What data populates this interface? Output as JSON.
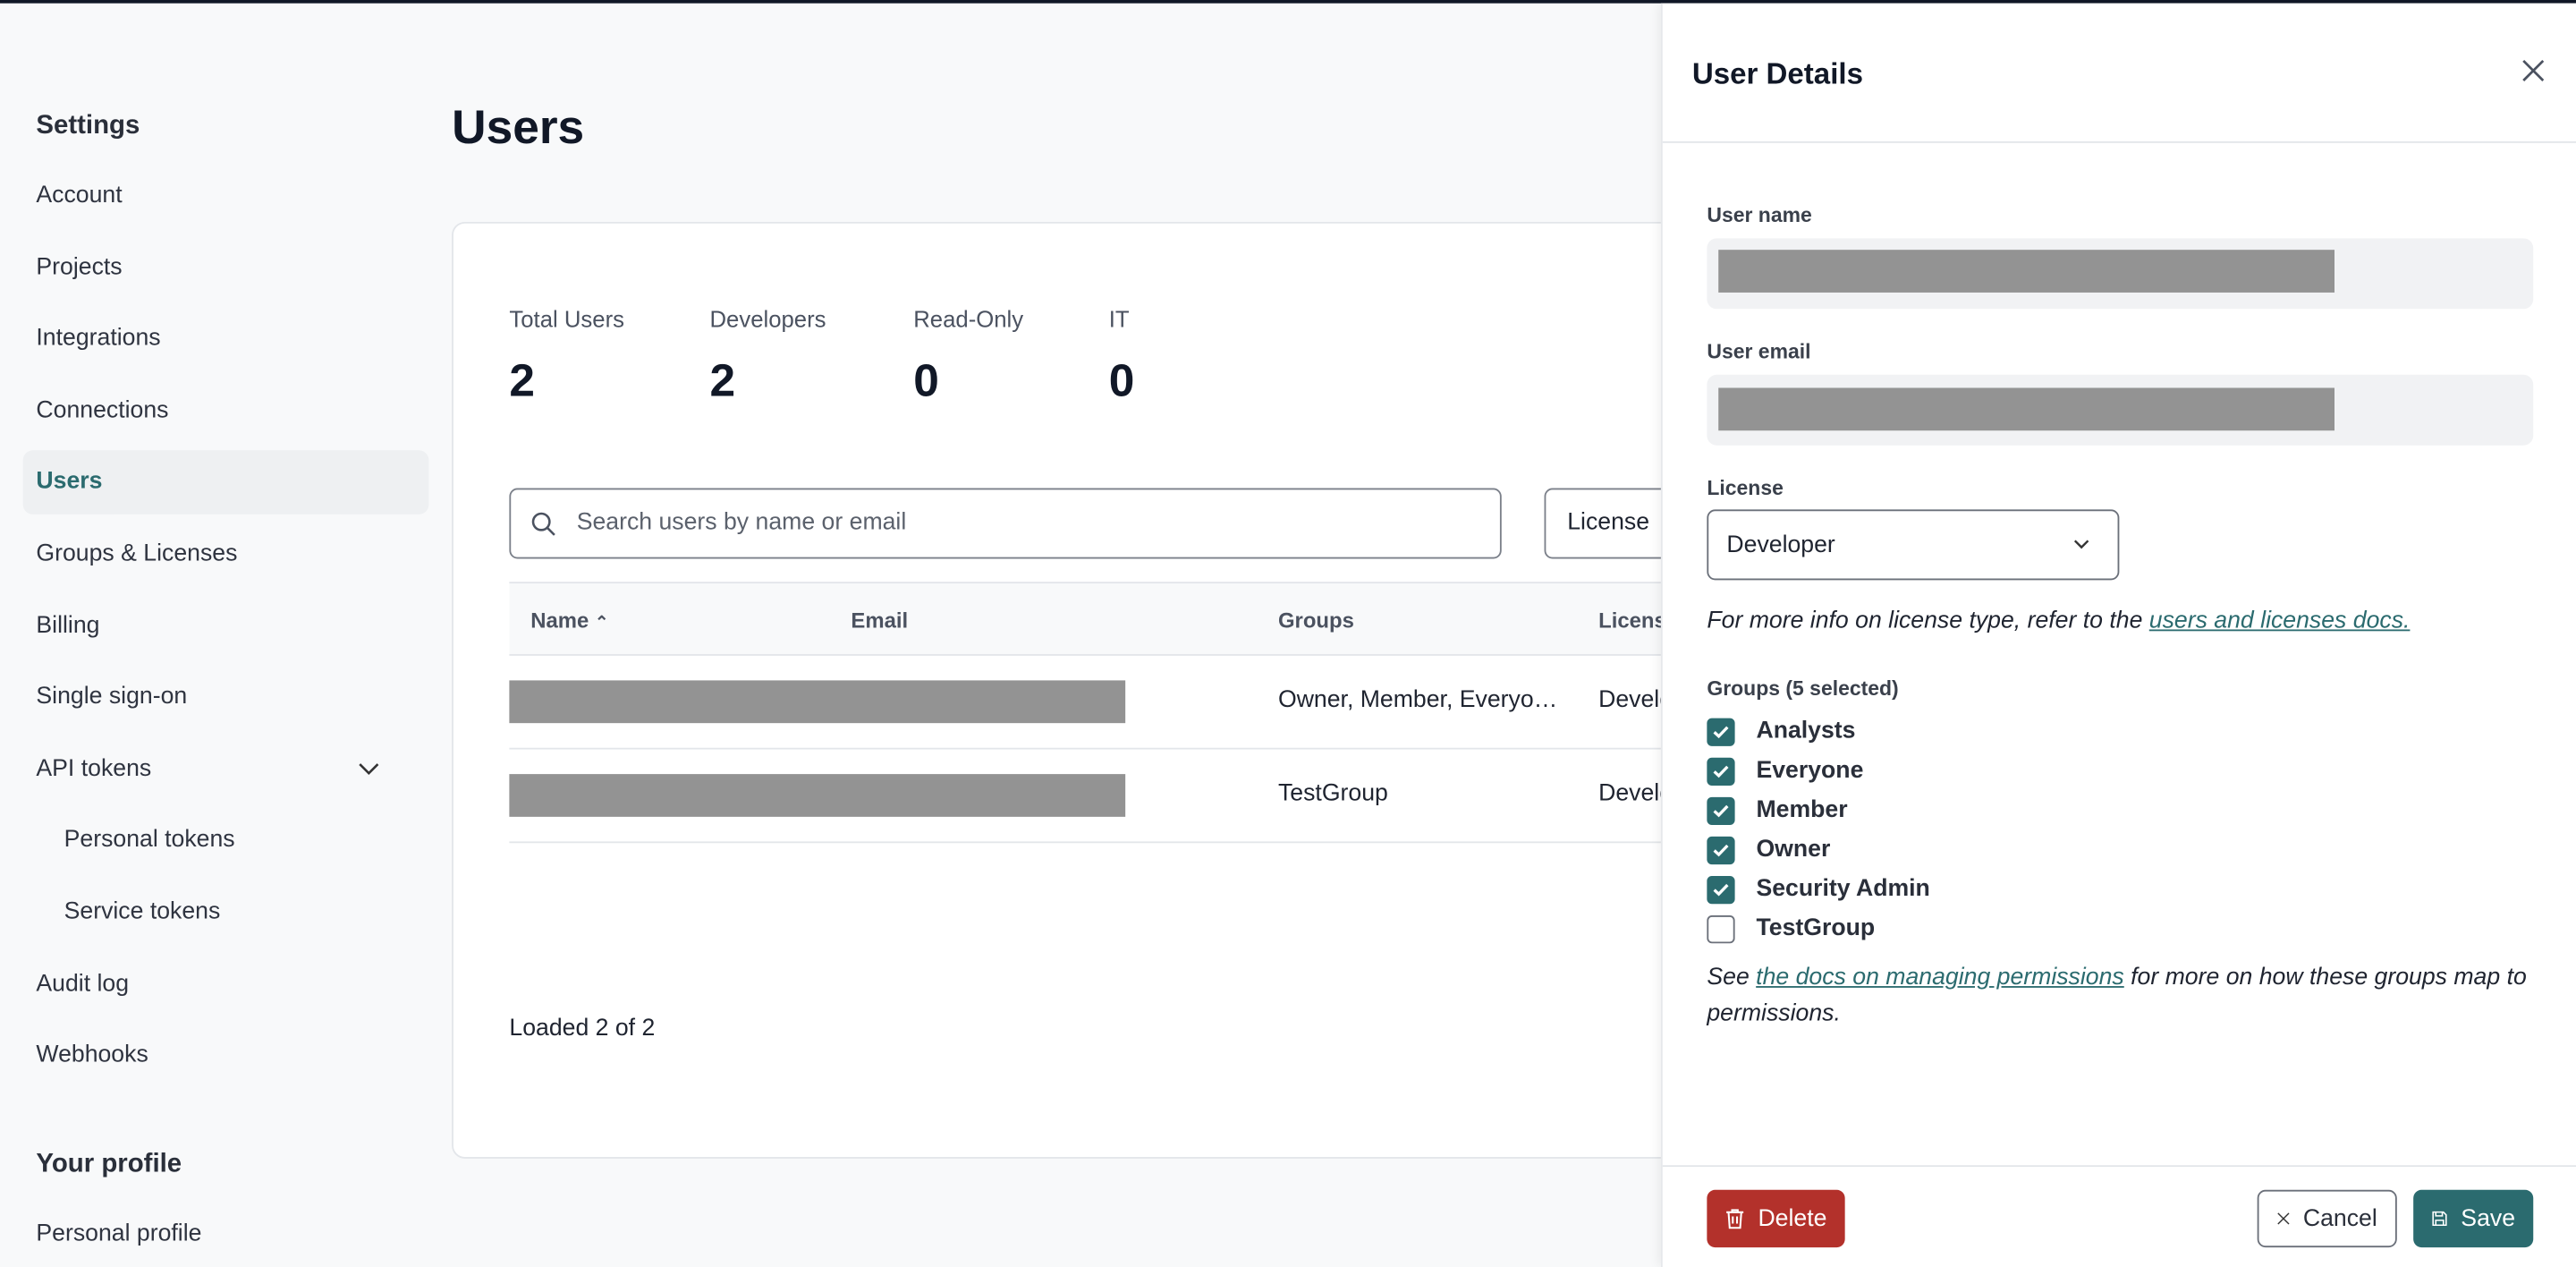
{
  "sidebar": {
    "title": "Settings",
    "items": [
      {
        "label": "Account"
      },
      {
        "label": "Projects"
      },
      {
        "label": "Integrations"
      },
      {
        "label": "Connections"
      },
      {
        "label": "Users",
        "active": true
      },
      {
        "label": "Groups & Licenses"
      },
      {
        "label": "Billing"
      },
      {
        "label": "Single sign-on"
      },
      {
        "label": "API tokens",
        "expanded": true
      },
      {
        "label": "Personal tokens"
      },
      {
        "label": "Service tokens"
      },
      {
        "label": "Audit log"
      },
      {
        "label": "Webhooks"
      }
    ],
    "profile_title": "Your profile",
    "profile_items": [
      {
        "label": "Personal profile"
      }
    ]
  },
  "main": {
    "title": "Users",
    "stats": [
      {
        "label": "Total Users",
        "value": "2"
      },
      {
        "label": "Developers",
        "value": "2"
      },
      {
        "label": "Read-Only",
        "value": "0"
      },
      {
        "label": "IT",
        "value": "0"
      }
    ],
    "search_placeholder": "Search users by name or email",
    "license_filter": "License",
    "columns": [
      "Name",
      "Email",
      "Groups",
      "License"
    ],
    "rows": [
      {
        "groups": "Owner, Member, Everyo…",
        "license": "Developer"
      },
      {
        "groups": "TestGroup",
        "license": "Developer"
      }
    ],
    "footer": "Loaded 2 of 2"
  },
  "panel": {
    "title": "User Details",
    "user_name_label": "User name",
    "user_email_label": "User email",
    "license_label": "License",
    "license_value": "Developer",
    "license_help": "For more info on license type, refer to the ",
    "license_link": "users and licenses docs.",
    "groups_label": "Groups (5 selected)",
    "groups": [
      {
        "label": "Analysts",
        "checked": true
      },
      {
        "label": "Everyone",
        "checked": true
      },
      {
        "label": "Member",
        "checked": true
      },
      {
        "label": "Owner",
        "checked": true
      },
      {
        "label": "Security Admin",
        "checked": true
      },
      {
        "label": "TestGroup",
        "checked": false
      }
    ],
    "perm_pre": "See ",
    "perm_link": "the docs on managing permissions",
    "perm_post": " for more on how these groups map to permissions.",
    "delete_label": "Delete",
    "cancel_label": "Cancel",
    "save_label": "Save"
  },
  "colors": {
    "accent": "#2b6b6f",
    "danger": "#b3312b"
  }
}
